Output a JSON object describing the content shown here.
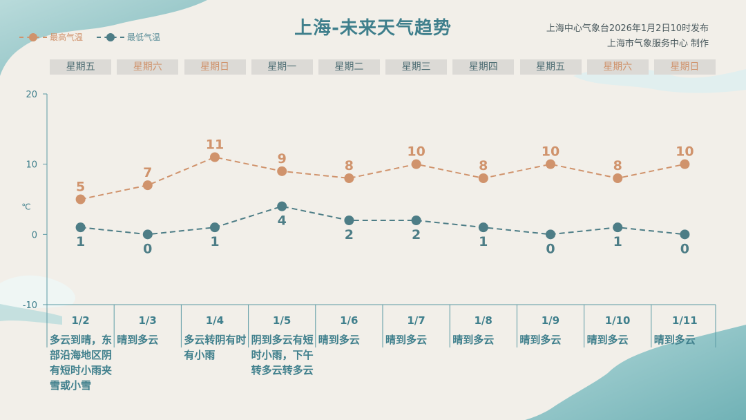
{
  "title": "上海-未来天气趋势",
  "issuer": "上海中心气象台2026年1月2日10时发布",
  "maker": "上海市气象服务中心  制作",
  "legend": {
    "high_label": "最高气温",
    "low_label": "最低气温"
  },
  "colors": {
    "high": "#d0936c",
    "low": "#4d7d86",
    "axis": "#5a9aa4",
    "text": "#3f7f8c"
  },
  "days": [
    {
      "weekday": "星期五",
      "weekend": false,
      "date": "1/2",
      "condition": "多云到晴，东部沿海地区阴有短时小雨夹雪或小雪"
    },
    {
      "weekday": "星期六",
      "weekend": true,
      "date": "1/3",
      "condition": "晴到多云"
    },
    {
      "weekday": "星期日",
      "weekend": true,
      "date": "1/4",
      "condition": "多云转阴有时有小雨"
    },
    {
      "weekday": "星期一",
      "weekend": false,
      "date": "1/5",
      "condition": "阴到多云有短时小雨，下午转多云转多云"
    },
    {
      "weekday": "星期二",
      "weekend": false,
      "date": "1/6",
      "condition": "晴到多云"
    },
    {
      "weekday": "星期三",
      "weekend": false,
      "date": "1/7",
      "condition": "晴到多云"
    },
    {
      "weekday": "星期四",
      "weekend": false,
      "date": "1/8",
      "condition": "晴到多云"
    },
    {
      "weekday": "星期五",
      "weekend": false,
      "date": "1/9",
      "condition": "晴到多云"
    },
    {
      "weekday": "星期六",
      "weekend": true,
      "date": "1/10",
      "condition": "晴到多云"
    },
    {
      "weekday": "星期日",
      "weekend": true,
      "date": "1/11",
      "condition": "晴到多云"
    }
  ],
  "chart_data": {
    "type": "line",
    "categories": [
      "1/2",
      "1/3",
      "1/4",
      "1/5",
      "1/6",
      "1/7",
      "1/8",
      "1/9",
      "1/10",
      "1/11"
    ],
    "series": [
      {
        "name": "最高气温",
        "values": [
          5,
          7,
          11,
          9,
          8,
          10,
          8,
          10,
          8,
          10
        ]
      },
      {
        "name": "最低气温",
        "values": [
          1,
          0,
          1,
          4,
          2,
          2,
          1,
          0,
          1,
          0
        ]
      }
    ],
    "ylabel": "℃",
    "ylim": [
      -10,
      20
    ],
    "yticks": [
      -10,
      0,
      10,
      20
    ],
    "grid": false,
    "legend_position": "top-left",
    "line_style": "dashed"
  }
}
